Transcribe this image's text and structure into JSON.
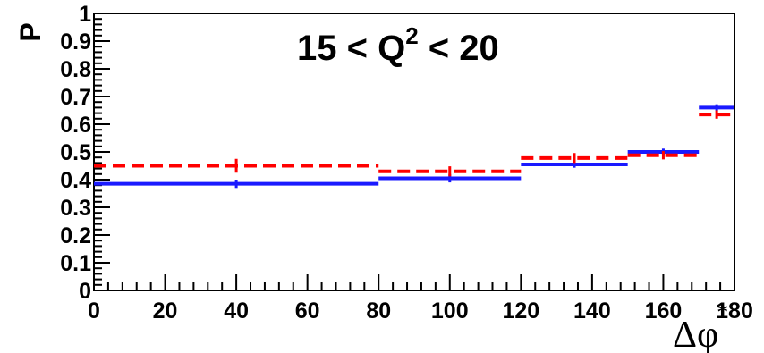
{
  "chart_data": {
    "type": "histogram",
    "title": {
      "prefix": "15 < Q",
      "sup": "2",
      "suffix": " < 20"
    },
    "ylabel": "P",
    "xlabel": {
      "symbol": "Δφ",
      "sup": "*"
    },
    "xlim": [
      0,
      180
    ],
    "ylim": [
      0,
      1
    ],
    "xticks": [
      "0",
      "20",
      "40",
      "60",
      "80",
      "100",
      "120",
      "140",
      "160",
      "180"
    ],
    "yticks": [
      "0",
      "0.1",
      "0.2",
      "0.3",
      "0.4",
      "0.5",
      "0.6",
      "0.7",
      "0.8",
      "0.9",
      "1"
    ],
    "series": [
      {
        "style": "solid",
        "color": "#1a1aff",
        "bins": [
          {
            "x0": 0,
            "x1": 80,
            "y": 0.385,
            "err": 0.015
          },
          {
            "x0": 80,
            "x1": 120,
            "y": 0.405,
            "err": 0.015
          },
          {
            "x0": 120,
            "x1": 150,
            "y": 0.455,
            "err": 0.012
          },
          {
            "x0": 150,
            "x1": 170,
            "y": 0.5,
            "err": 0.012
          },
          {
            "x0": 170,
            "x1": 180,
            "y": 0.66,
            "err": 0.012
          }
        ]
      },
      {
        "style": "dashed",
        "color": "#ff0000",
        "bins": [
          {
            "x0": 0,
            "x1": 80,
            "y": 0.45,
            "err": 0.025
          },
          {
            "x0": 80,
            "x1": 120,
            "y": 0.43,
            "err": 0.018
          },
          {
            "x0": 120,
            "x1": 150,
            "y": 0.478,
            "err": 0.018
          },
          {
            "x0": 150,
            "x1": 170,
            "y": 0.488,
            "err": 0.015
          },
          {
            "x0": 170,
            "x1": 180,
            "y": 0.635,
            "err": 0.015
          }
        ]
      }
    ]
  }
}
